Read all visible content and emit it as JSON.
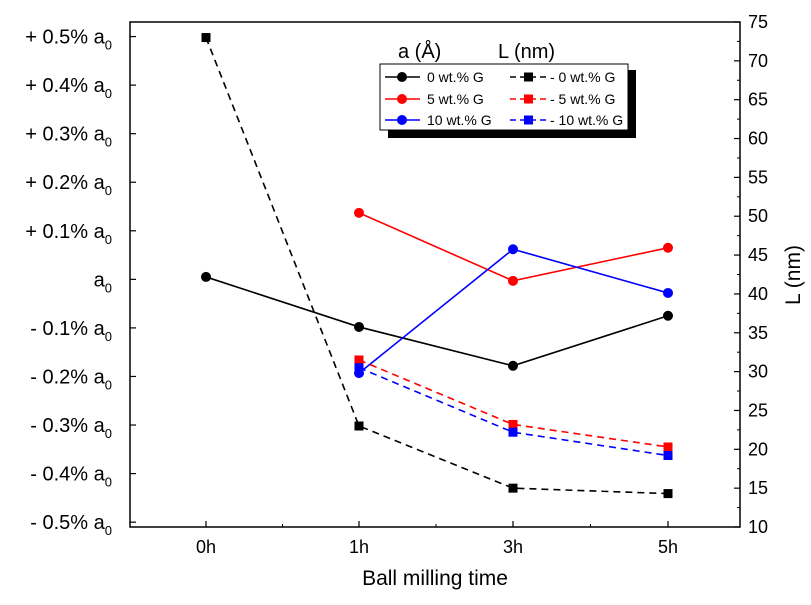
{
  "chart_data": {
    "type": "line",
    "x_categories": [
      "0h",
      "1h",
      "3h",
      "5h"
    ],
    "xlabel": "Ball milling time",
    "ylabel_right": "L (nm)",
    "left_axis": {
      "ticks": [
        {
          "prefix": "+ 0.5% a",
          "sub": "0",
          "value": 0.5
        },
        {
          "prefix": "+ 0.4% a",
          "sub": "0",
          "value": 0.4
        },
        {
          "prefix": "+ 0.3% a",
          "sub": "0",
          "value": 0.3
        },
        {
          "prefix": "+ 0.2% a",
          "sub": "0",
          "value": 0.2
        },
        {
          "prefix": "+ 0.1% a",
          "sub": "0",
          "value": 0.1
        },
        {
          "prefix": "a",
          "sub": "0",
          "value": 0.0
        },
        {
          "prefix": "- 0.1% a",
          "sub": "0",
          "value": -0.1
        },
        {
          "prefix": "- 0.2% a",
          "sub": "0",
          "value": -0.2
        },
        {
          "prefix": "- 0.3% a",
          "sub": "0",
          "value": -0.3
        },
        {
          "prefix": "- 0.4% a",
          "sub": "0",
          "value": -0.4
        },
        {
          "prefix": "- 0.5% a",
          "sub": "0",
          "value": -0.5
        }
      ],
      "ylim": [
        -0.51,
        0.53
      ]
    },
    "right_axis": {
      "ticks": [
        10,
        15,
        20,
        25,
        30,
        35,
        40,
        45,
        50,
        55,
        60,
        65,
        70,
        75
      ],
      "ylim": [
        10,
        75
      ]
    },
    "legend": {
      "placement": "top-right",
      "header_a": "a (Å)",
      "header_L": "L (nm)"
    },
    "series": [
      {
        "name": "0 wt.% G",
        "axis": "left",
        "style": "solid",
        "marker": "circle",
        "color": "#000000",
        "points": [
          [
            0,
            0.005
          ],
          [
            1,
            -0.098
          ],
          [
            2,
            -0.178
          ],
          [
            3,
            -0.075
          ]
        ]
      },
      {
        "name": "5 wt.% G",
        "axis": "left",
        "style": "solid",
        "marker": "circle",
        "color": "#ff0000",
        "points": [
          [
            1,
            0.137
          ],
          [
            2,
            -0.003
          ],
          [
            3,
            0.065
          ]
        ]
      },
      {
        "name": "10 wt.% G",
        "axis": "left",
        "style": "solid",
        "marker": "circle",
        "color": "#0000ff",
        "points": [
          [
            1,
            -0.193
          ],
          [
            2,
            0.062
          ],
          [
            3,
            -0.028
          ]
        ]
      },
      {
        "name": "- 0 wt.% G",
        "axis": "right",
        "style": "dashed",
        "marker": "square",
        "color": "#000000",
        "points": [
          [
            0,
            73
          ],
          [
            1,
            23
          ],
          [
            2,
            15
          ],
          [
            3,
            14.3
          ]
        ]
      },
      {
        "name": "- 5 wt.% G",
        "axis": "right",
        "style": "dashed",
        "marker": "square",
        "color": "#ff0000",
        "points": [
          [
            1,
            31.5
          ],
          [
            2,
            23.2
          ],
          [
            3,
            20.3
          ]
        ]
      },
      {
        "name": "- 10 wt.% G",
        "axis": "right",
        "style": "dashed",
        "marker": "square",
        "color": "#0000ff",
        "points": [
          [
            1,
            30.5
          ],
          [
            2,
            22.2
          ],
          [
            3,
            19.2
          ]
        ]
      }
    ]
  }
}
